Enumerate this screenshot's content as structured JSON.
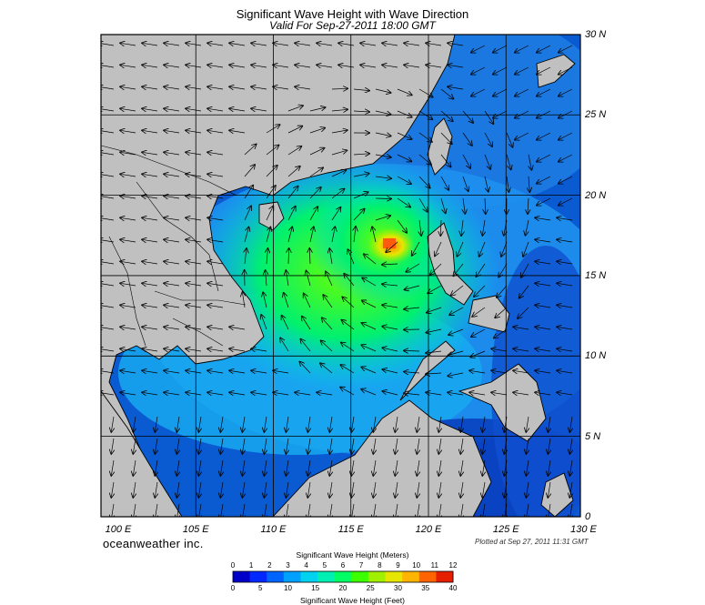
{
  "title": "Significant Wave Height with Wave Direction",
  "subtitle": "Valid For Sep-27-2011 18:00 GMT",
  "brand": "oceanweather inc.",
  "plotted": "Plotted at Sep 27, 2011 11:31 GMT",
  "lon_labels": [
    "100 E",
    "105 E",
    "110 E",
    "115 E",
    "120 E",
    "125 E",
    "130 E"
  ],
  "lat_labels": [
    "30 N",
    "25 N",
    "20 N",
    "15 N",
    "10 N",
    "5 N",
    "0"
  ],
  "colorbar": {
    "meters_title": "Significant Wave Height (Meters)",
    "feet_title": "Significant Wave Height (Feet)",
    "meters_ticks": [
      "0",
      "1",
      "2",
      "3",
      "4",
      "5",
      "6",
      "7",
      "8",
      "9",
      "10",
      "11",
      "12"
    ],
    "feet_ticks": [
      "0",
      "5",
      "10",
      "15",
      "20",
      "25",
      "30",
      "35",
      "40"
    ],
    "colors": [
      "#0000c8",
      "#0028ff",
      "#0064ff",
      "#00a0ff",
      "#00d2f0",
      "#00f0b4",
      "#00ff64",
      "#3cff00",
      "#a0f000",
      "#e6e600",
      "#ffb400",
      "#ff6400",
      "#e61e00"
    ]
  },
  "map": {
    "lon_range": [
      99,
      130
    ],
    "lat_range": [
      0,
      30
    ],
    "land_color": "#c0c0c0",
    "wave_peak": {
      "lon": 117.3,
      "lat": 17.5,
      "max_m": 10
    }
  }
}
